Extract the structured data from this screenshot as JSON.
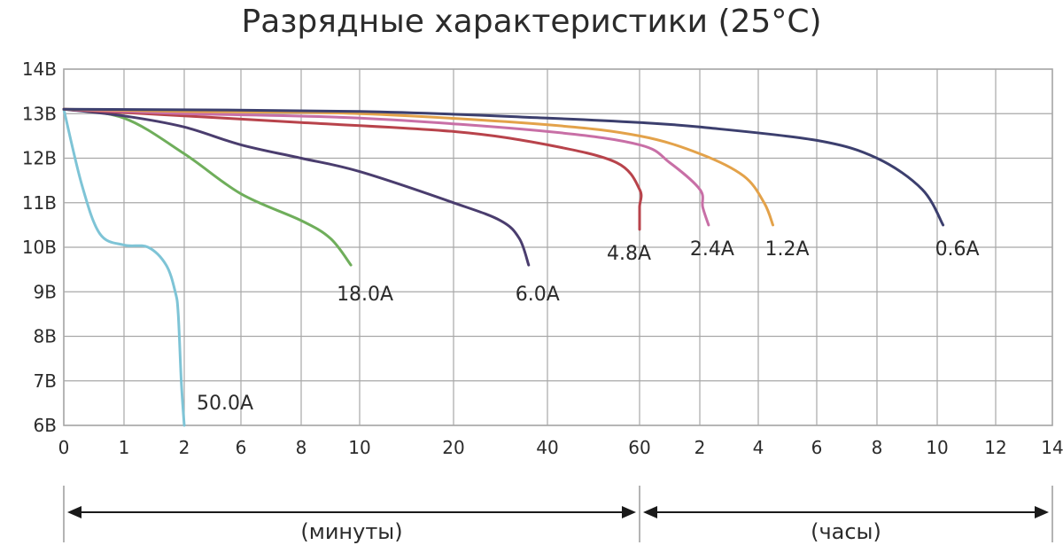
{
  "title": "Разрядные характеристики (25°C)",
  "chart_data": {
    "type": "line",
    "title": "Разрядные характеристики (25°C)",
    "y_ticks": [
      "14В",
      "13В",
      "12В",
      "11В",
      "10В",
      "9В",
      "8В",
      "7В",
      "6В"
    ],
    "ylim": [
      6,
      14
    ],
    "x_ticks": [
      "0",
      "1",
      "2",
      "6",
      "8",
      "10",
      "20",
      "40",
      "60",
      "2",
      "4",
      "6",
      "8",
      "10",
      "12",
      "14"
    ],
    "x_segments": [
      {
        "label": "(минуты)",
        "ticks": [
          "0",
          "1",
          "2",
          "6",
          "8",
          "10",
          "20",
          "40",
          "60"
        ]
      },
      {
        "label": "(часы)",
        "ticks": [
          "2",
          "4",
          "6",
          "8",
          "10",
          "12",
          "14"
        ]
      }
    ],
    "grid": true,
    "colors": {
      "50.0A": "#7ec4d6",
      "18.0A": "#6fae5b",
      "6.0A": "#4a3d6e",
      "4.8A": "#b8434b",
      "2.4A": "#c86fa6",
      "1.2A": "#e3a24a",
      "0.6A": "#3c3f6e"
    },
    "series": [
      {
        "name": "50.0A",
        "points": [
          [
            0,
            13.1
          ],
          [
            0.3,
            11.4
          ],
          [
            0.6,
            10.3
          ],
          [
            1,
            10.05
          ],
          [
            1.4,
            10
          ],
          [
            1.7,
            9.6
          ],
          [
            1.85,
            9
          ],
          [
            1.9,
            8.5
          ],
          [
            1.95,
            7
          ],
          [
            2.0,
            6
          ]
        ]
      },
      {
        "name": "18.0A",
        "points": [
          [
            0,
            13.1
          ],
          [
            1,
            12.9
          ],
          [
            2,
            12.1
          ],
          [
            6,
            11.2
          ],
          [
            8,
            10.6
          ],
          [
            9,
            10.2
          ],
          [
            9.7,
            9.6
          ]
        ]
      },
      {
        "name": "6.0A",
        "points": [
          [
            0,
            13.1
          ],
          [
            1,
            12.95
          ],
          [
            2,
            12.7
          ],
          [
            6,
            12.3
          ],
          [
            8,
            12.0
          ],
          [
            10,
            11.7
          ],
          [
            20,
            11.0
          ],
          [
            30,
            10.6
          ],
          [
            34,
            10.2
          ],
          [
            36,
            9.6
          ]
        ]
      },
      {
        "name": "4.8A",
        "points": [
          [
            0,
            13.1
          ],
          [
            2,
            12.95
          ],
          [
            8,
            12.8
          ],
          [
            20,
            12.6
          ],
          [
            40,
            12.3
          ],
          [
            55,
            11.9
          ],
          [
            62,
            11.3
          ],
          [
            64,
            10.9
          ],
          [
            65,
            10.4
          ]
        ]
      },
      {
        "name": "2.4A",
        "points": [
          [
            0,
            13.1
          ],
          [
            2,
            13.0
          ],
          [
            10,
            12.9
          ],
          [
            40,
            12.6
          ],
          [
            60,
            12.3
          ],
          [
            1.5,
            11.9
          ],
          [
            2.0,
            11.3
          ],
          [
            2.1,
            10.9
          ],
          [
            2.3,
            10.5
          ]
        ]
      },
      {
        "name": "1.2A",
        "points": [
          [
            0,
            13.1
          ],
          [
            2,
            13.05
          ],
          [
            10,
            13.0
          ],
          [
            40,
            12.75
          ],
          [
            60,
            12.5
          ],
          [
            2,
            12.1
          ],
          [
            3.5,
            11.6
          ],
          [
            4.2,
            11.0
          ],
          [
            4.5,
            10.5
          ]
        ]
      },
      {
        "name": "0.6A",
        "points": [
          [
            0,
            13.1
          ],
          [
            10,
            13.05
          ],
          [
            40,
            12.9
          ],
          [
            60,
            12.8
          ],
          [
            2,
            12.7
          ],
          [
            6,
            12.4
          ],
          [
            8,
            12.0
          ],
          [
            9.5,
            11.3
          ],
          [
            10.2,
            10.5
          ]
        ]
      }
    ],
    "series_x_units": [
      "мин",
      "мин",
      "мин",
      "мин+ч",
      "мин+ч",
      "мин+ч",
      "мин+ч"
    ],
    "axis_bands": {
      "minutes_label": "(минуты)",
      "hours_label": "(часы)"
    }
  }
}
